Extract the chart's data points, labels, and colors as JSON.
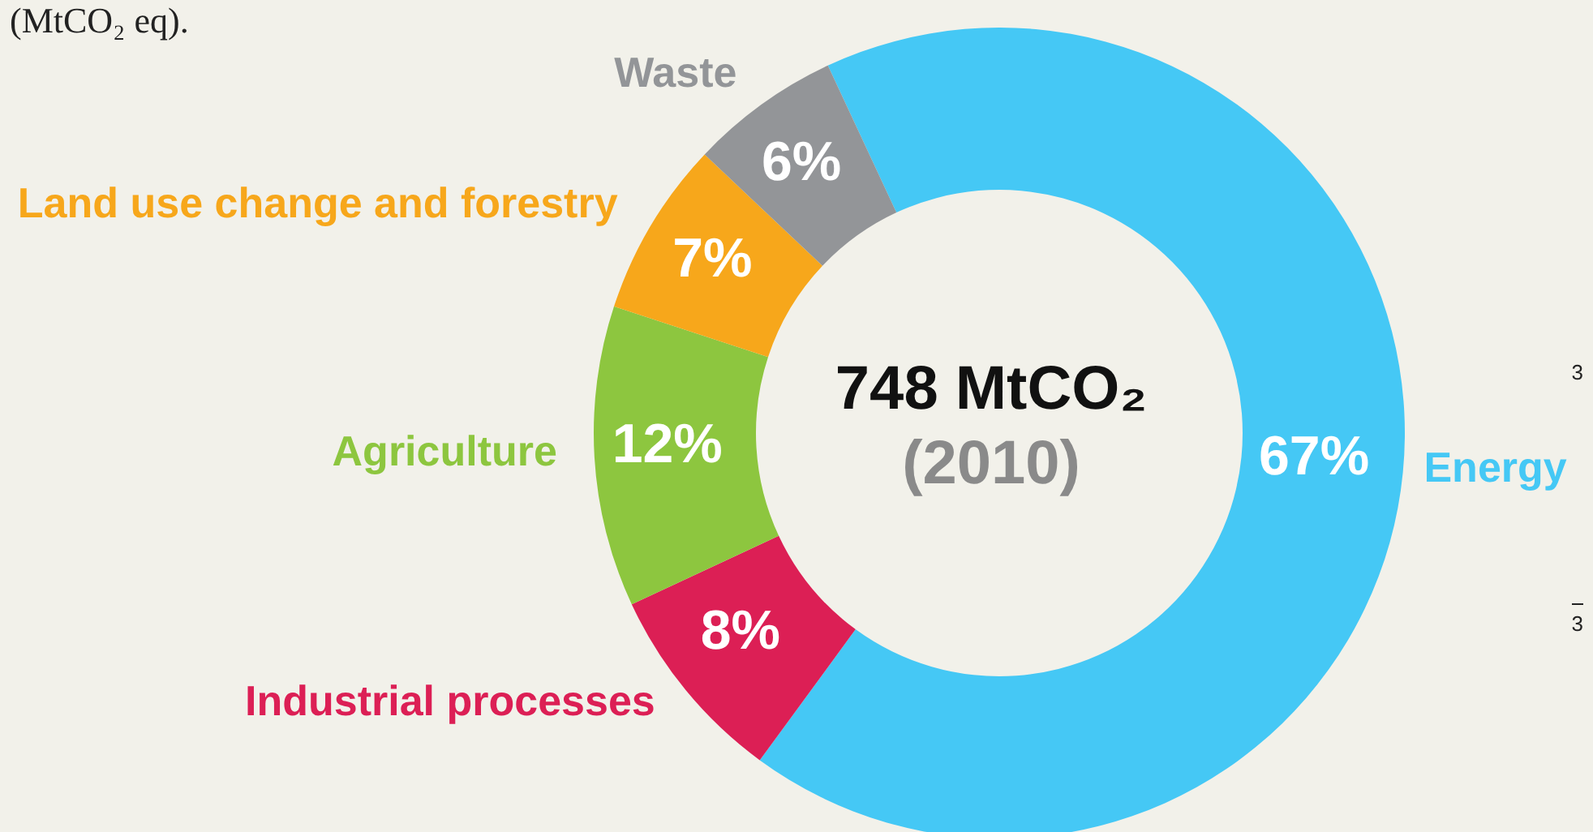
{
  "chart_data": {
    "type": "donut",
    "title": "748 MtCO₂",
    "subtitle": "(2010)",
    "annotations": [
      "(MtCO₂ eq).",
      "3",
      "3"
    ],
    "categories": [
      "Energy",
      "Industrial processes",
      "Agriculture",
      "Land use change and forestry",
      "Waste"
    ],
    "values": [
      67,
      8,
      12,
      7,
      6
    ],
    "value_labels": [
      "67%",
      "8%",
      "12%",
      "7%",
      "6%"
    ],
    "colors": [
      "#45c8f5",
      "#dc1f55",
      "#8dc63f",
      "#f7a71b",
      "#939598"
    ],
    "legend": false
  }
}
